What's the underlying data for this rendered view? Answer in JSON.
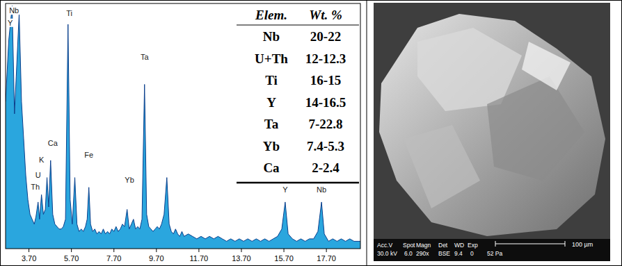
{
  "chart_data": {
    "type": "area",
    "x": [
      2.6,
      2.75,
      2.91,
      3.02,
      3.1,
      3.24,
      3.35,
      3.45,
      3.55,
      3.65,
      3.75,
      3.85,
      3.95,
      4.03,
      4.13,
      4.2,
      4.29,
      4.38,
      4.47,
      4.55,
      4.63,
      4.72,
      4.82,
      4.92,
      5.02,
      5.12,
      5.22,
      5.32,
      5.42,
      5.54,
      5.64,
      5.74,
      5.86,
      5.96,
      6.06,
      6.16,
      6.26,
      6.36,
      6.44,
      6.52,
      6.6,
      6.7,
      6.8,
      6.9,
      7.0,
      7.1,
      7.2,
      7.3,
      7.4,
      7.5,
      7.6,
      7.7,
      7.8,
      7.9,
      8.0,
      8.1,
      8.2,
      8.32,
      8.42,
      8.52,
      8.62,
      8.72,
      8.82,
      8.92,
      9.02,
      9.14,
      9.24,
      9.34,
      9.44,
      9.54,
      9.64,
      9.74,
      9.84,
      9.94,
      10.06,
      10.19,
      10.3,
      10.4,
      10.5,
      10.6,
      10.7,
      10.8,
      10.9,
      11.0,
      11.2,
      11.4,
      11.6,
      11.8,
      12.0,
      12.2,
      12.4,
      12.6,
      12.8,
      13.0,
      13.2,
      13.4,
      13.6,
      13.8,
      14.0,
      14.2,
      14.4,
      14.6,
      14.8,
      15.0,
      15.2,
      15.4,
      15.6,
      15.76,
      15.9,
      16.1,
      16.3,
      16.5,
      16.7,
      16.9,
      17.1,
      17.3,
      17.47,
      17.6,
      17.8,
      18.0,
      18.2,
      18.4,
      18.6,
      18.8,
      19.0,
      19.3
    ],
    "values": [
      60,
      85,
      99,
      55,
      70,
      96,
      60,
      45,
      30,
      20,
      14,
      12,
      10,
      13,
      19,
      12,
      22,
      14,
      16,
      29,
      17,
      36,
      14,
      10,
      9,
      8,
      8,
      9,
      12,
      91.5,
      20,
      10,
      29,
      10,
      7,
      8,
      7,
      9,
      12,
      25,
      10,
      7,
      8,
      6,
      7,
      6,
      8,
      6,
      7,
      6,
      8,
      7,
      9,
      7,
      8,
      10,
      9,
      16,
      8,
      10,
      12,
      8,
      9,
      8,
      12,
      67,
      14,
      9,
      8,
      7,
      8,
      9,
      8,
      10,
      14,
      29,
      10,
      7,
      6,
      8,
      6,
      5,
      7,
      5,
      6,
      5,
      4,
      5,
      4,
      5,
      4,
      5,
      4,
      3,
      4,
      3,
      4,
      3,
      4,
      3,
      4,
      3,
      4,
      3,
      4,
      5,
      8,
      19,
      6,
      4,
      3,
      4,
      3,
      4,
      4,
      7,
      19,
      6,
      3,
      4,
      3,
      4,
      3,
      4,
      3,
      3
    ],
    "color": "#2aa6de",
    "xlim": [
      2.6,
      19.3
    ],
    "ylim": [
      0,
      100
    ],
    "xticks": [
      {
        "value": 3.7,
        "label": "3.70"
      },
      {
        "value": 5.7,
        "label": "5.70"
      },
      {
        "value": 7.7,
        "label": "7.70"
      },
      {
        "value": 9.7,
        "label": "9.70"
      },
      {
        "value": 11.7,
        "label": "11.70"
      },
      {
        "value": 13.7,
        "label": "13.70"
      },
      {
        "value": 15.7,
        "label": "15.70"
      },
      {
        "value": 17.7,
        "label": "17.70"
      }
    ],
    "tick_labels": "x",
    "annotations": [
      {
        "text": "Nb",
        "x": 3.0,
        "y": 96
      },
      {
        "text": "Y",
        "x": 2.82,
        "y": 91
      },
      {
        "text": "Ti",
        "x": 5.6,
        "y": 95
      },
      {
        "text": "Ca",
        "x": 4.82,
        "y": 42
      },
      {
        "text": "K",
        "x": 4.29,
        "y": 35
      },
      {
        "text": "U",
        "x": 4.13,
        "y": 29
      },
      {
        "text": "Th",
        "x": 4.0,
        "y": 24
      },
      {
        "text": "Fe",
        "x": 6.52,
        "y": 37
      },
      {
        "text": "Yb",
        "x": 8.43,
        "y": 27
      },
      {
        "text": "Ta",
        "x": 9.14,
        "y": 77
      },
      {
        "text": "Y",
        "x": 15.76,
        "y": 23
      },
      {
        "text": "Nb",
        "x": 17.47,
        "y": 23
      }
    ]
  },
  "table": {
    "header": [
      "Elem.",
      "Wt. %"
    ],
    "rows": [
      [
        "Nb",
        "20-22"
      ],
      [
        "U+Th",
        "12-12.3"
      ],
      [
        "Ti",
        "16-15"
      ],
      [
        "Y",
        "14-16.5"
      ],
      [
        "Ta",
        "7-22.8"
      ],
      [
        "Yb",
        "7.4-5.3"
      ],
      [
        "Ca",
        "2-2.4"
      ]
    ]
  },
  "micrograph": {
    "labels": [
      "Acc.V",
      "Spot",
      "Magn",
      "Det",
      "WD",
      "Exp"
    ],
    "values": [
      "30.0 kV",
      "6.0",
      "290x",
      "BSE",
      "9.4",
      "0"
    ],
    "pressure": "52 Pa",
    "scale_bar": "100 µm"
  }
}
